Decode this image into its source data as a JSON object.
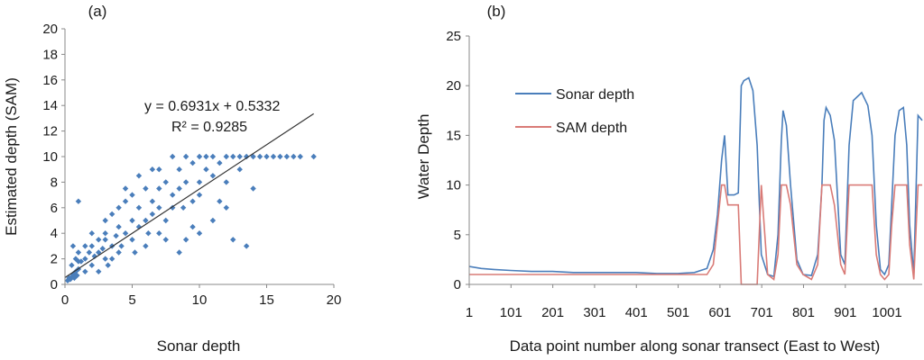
{
  "chart_data": [
    {
      "panel_label": "(a)",
      "type": "scatter",
      "xlabel": "Sonar depth",
      "ylabel": "Estimated depth (SAM)",
      "xlim": [
        0,
        20
      ],
      "ylim": [
        0,
        20
      ],
      "xticks": [
        0,
        5,
        10,
        15,
        20
      ],
      "yticks": [
        0,
        2,
        4,
        6,
        8,
        10,
        12,
        14,
        16,
        18,
        20
      ],
      "marker_color": "#4a7ebb",
      "trendline": {
        "slope": 0.6931,
        "intercept": 0.5332,
        "x_range": [
          0,
          18.5
        ],
        "color": "#333333"
      },
      "equation_text": "y = 0.6931x + 0.5332",
      "r2_text": "R² = 0.9285",
      "points": [
        [
          0.2,
          0.3
        ],
        [
          0.3,
          0.5
        ],
        [
          0.4,
          0.4
        ],
        [
          0.5,
          0.6
        ],
        [
          0.6,
          0.8
        ],
        [
          0.7,
          0.5
        ],
        [
          0.8,
          1.0
        ],
        [
          0.9,
          0.7
        ],
        [
          1.0,
          1.2
        ],
        [
          0.5,
          1.5
        ],
        [
          0.8,
          2.0
        ],
        [
          1.0,
          2.5
        ],
        [
          1.2,
          1.8
        ],
        [
          0.6,
          3.0
        ],
        [
          1.0,
          6.5
        ],
        [
          1.5,
          1.0
        ],
        [
          1.5,
          2.0
        ],
        [
          1.8,
          2.5
        ],
        [
          2.0,
          1.5
        ],
        [
          2.0,
          3.0
        ],
        [
          2.2,
          2.2
        ],
        [
          2.5,
          3.5
        ],
        [
          2.5,
          1.0
        ],
        [
          2.8,
          2.8
        ],
        [
          3.0,
          2.0
        ],
        [
          3.0,
          3.5
        ],
        [
          3.0,
          4.0
        ],
        [
          3.2,
          1.5
        ],
        [
          3.5,
          3.0
        ],
        [
          3.5,
          5.5
        ],
        [
          3.8,
          3.8
        ],
        [
          4.0,
          2.5
        ],
        [
          4.0,
          4.5
        ],
        [
          4.0,
          6.0
        ],
        [
          4.2,
          3.0
        ],
        [
          4.5,
          4.0
        ],
        [
          4.5,
          6.5
        ],
        [
          5.0,
          3.5
        ],
        [
          5.0,
          5.0
        ],
        [
          5.0,
          7.0
        ],
        [
          5.2,
          2.5
        ],
        [
          5.5,
          4.5
        ],
        [
          5.5,
          6.0
        ],
        [
          6.0,
          5.0
        ],
        [
          6.0,
          7.5
        ],
        [
          6.0,
          3.0
        ],
        [
          6.2,
          4.0
        ],
        [
          6.5,
          6.5
        ],
        [
          6.5,
          5.5
        ],
        [
          7.0,
          6.0
        ],
        [
          7.0,
          7.5
        ],
        [
          7.0,
          4.0
        ],
        [
          7.5,
          5.0
        ],
        [
          7.5,
          8.0
        ],
        [
          7.5,
          3.5
        ],
        [
          8.0,
          7.0
        ],
        [
          8.0,
          10.0
        ],
        [
          8.0,
          6.0
        ],
        [
          8.5,
          9.0
        ],
        [
          8.5,
          7.5
        ],
        [
          8.5,
          2.5
        ],
        [
          9.0,
          8.0
        ],
        [
          9.0,
          10.0
        ],
        [
          9.0,
          3.5
        ],
        [
          9.5,
          9.5
        ],
        [
          9.5,
          6.5
        ],
        [
          10.0,
          10.0
        ],
        [
          10.0,
          8.0
        ],
        [
          10.0,
          7.0
        ],
        [
          10.5,
          9.0
        ],
        [
          10.5,
          10.0
        ],
        [
          11.0,
          10.0
        ],
        [
          11.0,
          8.5
        ],
        [
          11.5,
          9.5
        ],
        [
          12.0,
          10.0
        ],
        [
          12.0,
          8.0
        ],
        [
          12.5,
          10.0
        ],
        [
          13.0,
          10.0
        ],
        [
          13.0,
          9.0
        ],
        [
          13.5,
          10.0
        ],
        [
          14.0,
          10.0
        ],
        [
          14.5,
          10.0
        ],
        [
          15.0,
          10.0
        ],
        [
          15.5,
          10.0
        ],
        [
          16.0,
          10.0
        ],
        [
          16.5,
          10.0
        ],
        [
          17.0,
          10.0
        ],
        [
          17.5,
          10.0
        ],
        [
          18.5,
          10.0
        ],
        [
          12.5,
          3.5
        ],
        [
          13.5,
          3.0
        ],
        [
          10.0,
          4.0
        ],
        [
          11.5,
          6.5
        ],
        [
          2.0,
          4.0
        ],
        [
          3.0,
          5.0
        ],
        [
          6.5,
          9.0
        ],
        [
          5.5,
          8.5
        ],
        [
          4.5,
          7.5
        ],
        [
          7.0,
          9.0
        ],
        [
          1.5,
          3.0
        ],
        [
          2.5,
          2.5
        ],
        [
          3.5,
          2.0
        ],
        [
          1.0,
          1.8
        ],
        [
          12.0,
          6.0
        ],
        [
          11.0,
          5.0
        ],
        [
          9.5,
          4.5
        ],
        [
          8.8,
          6.0
        ],
        [
          14.0,
          7.5
        ]
      ]
    },
    {
      "panel_label": "(b)",
      "type": "line",
      "xlabel": "Data point number along sonar transect (East to West)",
      "ylabel": "Water Depth",
      "xlim": [
        1,
        1085
      ],
      "ylim": [
        0,
        25
      ],
      "xticks": [
        1,
        101,
        201,
        301,
        401,
        501,
        601,
        701,
        801,
        901,
        1001
      ],
      "yticks": [
        0,
        5,
        10,
        15,
        20,
        25
      ],
      "series": [
        {
          "name": "Sonar depth",
          "color": "#4a7ebb",
          "x": [
            1,
            30,
            60,
            100,
            150,
            200,
            250,
            300,
            350,
            400,
            450,
            500,
            540,
            570,
            585,
            595,
            605,
            612,
            620,
            635,
            645,
            652,
            658,
            670,
            680,
            690,
            700,
            715,
            730,
            740,
            748,
            752,
            760,
            770,
            785,
            800,
            820,
            835,
            845,
            850,
            855,
            865,
            875,
            890,
            900,
            910,
            920,
            940,
            955,
            965,
            975,
            985,
            995,
            1005,
            1012,
            1020,
            1030,
            1040,
            1048,
            1055,
            1065,
            1075,
            1085
          ],
          "values": [
            1.8,
            1.6,
            1.5,
            1.4,
            1.3,
            1.3,
            1.2,
            1.2,
            1.2,
            1.2,
            1.1,
            1.1,
            1.2,
            1.6,
            3.5,
            7.0,
            12.5,
            15.0,
            9.0,
            9.0,
            9.2,
            20.0,
            20.5,
            20.8,
            19.5,
            14.0,
            3.0,
            1.0,
            0.8,
            5.0,
            14.5,
            17.5,
            16.0,
            10.0,
            2.5,
            1.0,
            0.9,
            3.0,
            10.0,
            16.5,
            17.8,
            17.0,
            14.5,
            3.0,
            2.0,
            14.0,
            18.5,
            19.3,
            18.0,
            15.0,
            6.0,
            1.5,
            1.0,
            2.0,
            8.0,
            15.0,
            17.5,
            17.8,
            14.0,
            6.0,
            1.0,
            17.0,
            16.5
          ]
        },
        {
          "name": "SAM depth",
          "color": "#d97b77",
          "x": [
            1,
            30,
            60,
            100,
            150,
            200,
            250,
            300,
            350,
            400,
            450,
            500,
            540,
            570,
            585,
            595,
            605,
            612,
            620,
            635,
            645,
            652,
            658,
            670,
            680,
            690,
            700,
            715,
            730,
            740,
            748,
            752,
            760,
            770,
            785,
            800,
            820,
            835,
            845,
            850,
            855,
            865,
            875,
            890,
            900,
            910,
            920,
            940,
            955,
            965,
            975,
            985,
            995,
            1005,
            1012,
            1020,
            1030,
            1040,
            1048,
            1055,
            1065,
            1075,
            1085
          ],
          "values": [
            1.0,
            1.0,
            1.0,
            1.0,
            1.0,
            1.0,
            1.0,
            1.0,
            1.0,
            1.0,
            1.0,
            1.0,
            1.0,
            1.0,
            2.0,
            6.0,
            10.0,
            10.0,
            8.0,
            8.0,
            8.0,
            0.0,
            0.0,
            0.0,
            0.0,
            0.0,
            10.0,
            1.0,
            0.5,
            3.0,
            10.0,
            10.0,
            10.0,
            8.0,
            2.0,
            1.0,
            0.5,
            2.0,
            10.0,
            10.0,
            10.0,
            10.0,
            8.0,
            2.0,
            1.0,
            10.0,
            10.0,
            10.0,
            10.0,
            10.0,
            3.0,
            1.0,
            0.5,
            1.0,
            6.0,
            10.0,
            10.0,
            10.0,
            10.0,
            4.0,
            0.5,
            10.0,
            10.0
          ]
        }
      ],
      "legend": [
        "Sonar depth",
        "SAM depth"
      ]
    }
  ]
}
